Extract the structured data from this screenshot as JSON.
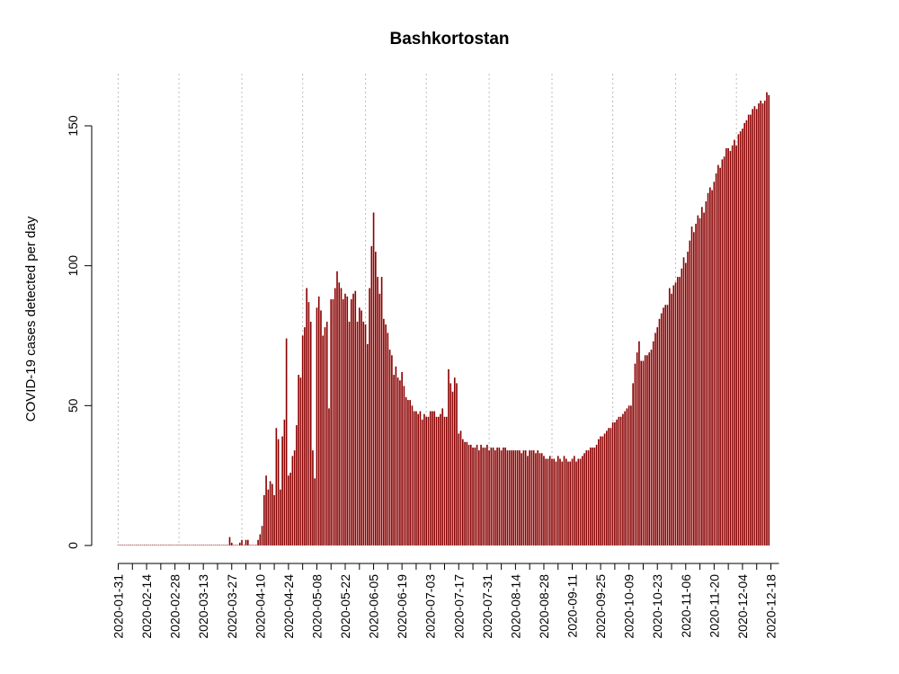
{
  "chart_data": {
    "type": "bar",
    "title": "Bashkortostan",
    "xlabel": "",
    "ylabel": "COVID-19 cases detected per day",
    "ylim": [
      0,
      165
    ],
    "yticks": [
      0,
      50,
      100,
      150
    ],
    "x_start": "2020-01-31",
    "x_end": "2020-12-22",
    "xtick_labels": [
      "2020-01-31",
      "2020-02-14",
      "2020-02-28",
      "2020-03-13",
      "2020-03-27",
      "2020-04-10",
      "2020-04-24",
      "2020-05-08",
      "2020-05-22",
      "2020-06-05",
      "2020-06-19",
      "2020-07-03",
      "2020-07-17",
      "2020-07-31",
      "2020-08-14",
      "2020-08-28",
      "2020-09-11",
      "2020-09-25",
      "2020-10-09",
      "2020-10-23",
      "2020-11-06",
      "2020-11-20",
      "2020-12-04",
      "2020-12-18"
    ],
    "vgrid_dates": [
      "2020-01-31",
      "2020-03-01",
      "2020-04-01",
      "2020-05-01",
      "2020-06-01",
      "2020-07-01",
      "2020-08-01",
      "2020-09-01",
      "2020-10-01",
      "2020-11-01",
      "2020-12-01"
    ],
    "bar_color": "#8b0000",
    "grid_color": "#bdbdbd",
    "series": [
      {
        "x_start": "2020-01-31",
        "values": [
          0,
          0,
          0,
          0,
          0,
          0,
          0,
          0,
          0,
          0,
          0,
          0,
          0,
          0,
          0,
          0,
          0,
          0,
          0,
          0,
          0,
          0,
          0,
          0,
          0,
          0,
          0,
          0,
          0,
          0,
          0,
          0,
          0,
          0,
          0,
          0,
          0,
          0,
          0,
          0,
          0,
          0,
          0,
          0,
          0,
          0,
          0,
          0,
          0,
          0,
          0,
          0,
          0,
          0,
          0,
          3,
          1,
          0,
          0,
          0,
          1,
          2,
          0,
          2,
          2,
          0,
          0,
          0,
          0,
          2,
          4,
          7,
          18,
          25,
          20,
          23,
          22,
          18,
          42,
          38,
          20,
          39,
          45,
          74,
          25,
          26,
          32,
          34,
          43,
          61,
          60,
          75,
          78,
          92,
          87,
          80,
          34,
          24,
          85,
          89,
          84,
          75,
          78,
          80,
          49,
          88,
          88,
          92,
          98,
          94,
          92,
          88,
          90,
          89,
          80,
          88,
          90,
          91,
          80,
          85,
          84,
          80,
          79,
          72,
          92,
          107,
          119,
          105,
          96,
          90,
          96,
          81,
          79,
          76,
          70,
          68,
          61,
          64,
          60,
          59,
          62,
          57,
          53,
          52,
          52,
          50,
          48,
          48,
          47,
          48,
          45,
          47,
          46,
          46,
          48,
          48,
          48,
          46,
          46,
          47,
          49,
          46,
          46,
          63,
          58,
          55,
          60,
          58,
          40,
          41,
          38,
          37,
          37,
          36,
          36,
          35,
          35,
          36,
          34,
          36,
          35,
          35,
          36,
          34,
          35,
          35,
          34,
          35,
          35,
          34,
          35,
          35,
          34,
          34,
          34,
          34,
          34,
          34,
          34,
          33,
          34,
          34,
          32,
          34,
          34,
          34,
          33,
          34,
          33,
          33,
          32,
          31,
          31,
          32,
          31,
          31,
          30,
          32,
          31,
          30,
          32,
          31,
          30,
          30,
          31,
          32,
          30,
          31,
          31,
          32,
          33,
          34,
          34,
          35,
          35,
          35,
          36,
          38,
          39,
          39,
          40,
          41,
          42,
          42,
          44,
          44,
          45,
          46,
          46,
          47,
          48,
          49,
          50,
          50,
          58,
          65,
          69,
          73,
          66,
          66,
          68,
          68,
          69,
          70,
          73,
          76,
          78,
          81,
          83,
          85,
          86,
          86,
          92,
          90,
          93,
          94,
          96,
          96,
          99,
          103,
          101,
          105,
          109,
          114,
          112,
          115,
          118,
          117,
          121,
          119,
          123,
          126,
          128,
          127,
          130,
          133,
          136,
          135,
          138,
          139,
          142,
          142,
          141,
          143,
          145,
          143,
          147,
          148,
          149,
          151,
          152,
          154,
          154,
          156,
          157,
          156,
          158,
          159,
          158,
          159,
          162,
          161
        ]
      }
    ]
  }
}
